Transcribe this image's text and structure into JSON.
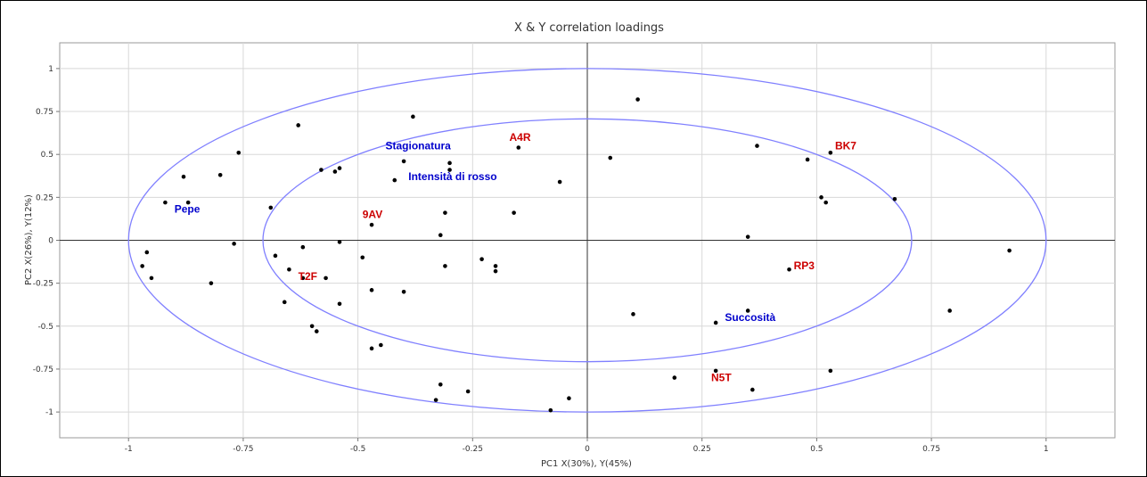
{
  "chart_data": {
    "type": "scatter",
    "title": "X & Y correlation loadings",
    "xlabel": "PC1 X(30%), Y(45%)",
    "ylabel": "PC2 X(26%), Y(12%)",
    "xlim": [
      -1.15,
      1.15
    ],
    "ylim": [
      -1.15,
      1.15
    ],
    "x_ticks": [
      "-1",
      "-0.75",
      "-0.5",
      "-0.25",
      "0",
      "0.25",
      "0.5",
      "0.75",
      "1"
    ],
    "y_ticks": [
      "1",
      "0.75",
      "0.5",
      "0.25",
      "0",
      "-0.25",
      "-0.5",
      "-0.75",
      "-1"
    ],
    "grid": true,
    "circles": [
      1.0,
      0.707
    ],
    "colors": {
      "x_labels": "#cc0000",
      "y_labels": "#0000cc",
      "points": "#000000",
      "circles": "#8080ff",
      "grid": "#d8d8d8"
    },
    "points": [
      [
        -0.96,
        -0.07
      ],
      [
        -0.97,
        -0.15
      ],
      [
        -0.95,
        -0.22
      ],
      [
        -0.92,
        0.22
      ],
      [
        -0.88,
        0.37
      ],
      [
        -0.87,
        0.22
      ],
      [
        -0.8,
        0.38
      ],
      [
        -0.76,
        0.51
      ],
      [
        -0.77,
        -0.02
      ],
      [
        -0.82,
        -0.25
      ],
      [
        -0.69,
        0.19
      ],
      [
        -0.68,
        -0.09
      ],
      [
        -0.65,
        -0.17
      ],
      [
        -0.66,
        -0.36
      ],
      [
        -0.63,
        0.67
      ],
      [
        -0.62,
        -0.04
      ],
      [
        -0.62,
        -0.22
      ],
      [
        -0.6,
        -0.5
      ],
      [
        -0.59,
        -0.53
      ],
      [
        -0.58,
        0.41
      ],
      [
        -0.57,
        -0.22
      ],
      [
        -0.55,
        0.4
      ],
      [
        -0.54,
        0.42
      ],
      [
        -0.54,
        -0.37
      ],
      [
        -0.54,
        -0.01
      ],
      [
        -0.49,
        -0.1
      ],
      [
        -0.47,
        0.09
      ],
      [
        -0.47,
        -0.29
      ],
      [
        -0.47,
        -0.63
      ],
      [
        -0.45,
        -0.61
      ],
      [
        -0.42,
        0.35
      ],
      [
        -0.4,
        0.46
      ],
      [
        -0.4,
        -0.3
      ],
      [
        -0.38,
        0.72
      ],
      [
        -0.33,
        -0.93
      ],
      [
        -0.32,
        -0.84
      ],
      [
        -0.32,
        0.03
      ],
      [
        -0.31,
        0.16
      ],
      [
        -0.3,
        0.45
      ],
      [
        -0.3,
        0.41
      ],
      [
        -0.31,
        -0.15
      ],
      [
        -0.26,
        -0.88
      ],
      [
        -0.23,
        -0.11
      ],
      [
        -0.2,
        -0.15
      ],
      [
        -0.2,
        -0.18
      ],
      [
        -0.15,
        0.54
      ],
      [
        -0.16,
        0.16
      ],
      [
        -0.06,
        0.34
      ],
      [
        -0.04,
        -0.92
      ],
      [
        -0.08,
        -0.99
      ],
      [
        0.05,
        0.48
      ],
      [
        0.1,
        -0.43
      ],
      [
        0.11,
        0.82
      ],
      [
        0.19,
        -0.8
      ],
      [
        0.28,
        -0.76
      ],
      [
        0.28,
        -0.48
      ],
      [
        0.35,
        -0.41
      ],
      [
        0.35,
        0.02
      ],
      [
        0.36,
        -0.87
      ],
      [
        0.37,
        0.55
      ],
      [
        0.44,
        -0.17
      ],
      [
        0.48,
        0.47
      ],
      [
        0.51,
        0.25
      ],
      [
        0.52,
        0.22
      ],
      [
        0.53,
        0.51
      ],
      [
        0.53,
        -0.76
      ],
      [
        0.67,
        0.24
      ],
      [
        0.79,
        -0.41
      ],
      [
        0.92,
        -0.06
      ]
    ],
    "labels": [
      {
        "text": "Pepe",
        "x": -0.9,
        "y": 0.16,
        "group": "y"
      },
      {
        "text": "Stagionatura",
        "x": -0.44,
        "y": 0.53,
        "group": "y"
      },
      {
        "text": "Intensità di rosso",
        "x": -0.39,
        "y": 0.35,
        "group": "y"
      },
      {
        "text": "Succosità",
        "x": 0.3,
        "y": -0.47,
        "group": "y"
      },
      {
        "text": "A4R",
        "x": -0.17,
        "y": 0.58,
        "group": "x"
      },
      {
        "text": "BK7",
        "x": 0.54,
        "y": 0.53,
        "group": "x"
      },
      {
        "text": "9AV",
        "x": -0.49,
        "y": 0.13,
        "group": "x"
      },
      {
        "text": "T2F",
        "x": -0.63,
        "y": -0.23,
        "group": "x"
      },
      {
        "text": "RP3",
        "x": 0.45,
        "y": -0.17,
        "group": "x"
      },
      {
        "text": "N5T",
        "x": 0.27,
        "y": -0.82,
        "group": "x"
      }
    ]
  }
}
